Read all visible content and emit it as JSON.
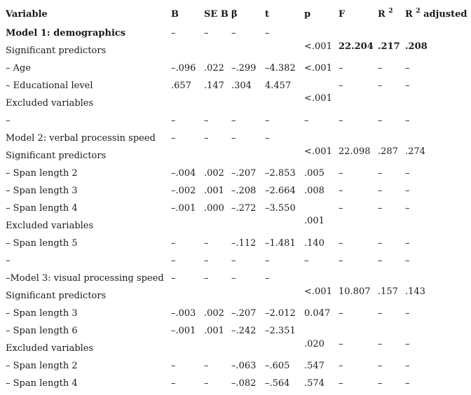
{
  "header": {
    "variable": "Variable",
    "b": "B",
    "se_b": "SE B",
    "beta": "β",
    "t": "t",
    "p": "p",
    "f": "F",
    "r2": "R",
    "r2_sup": "2",
    "r2adj": "R",
    "r2adj_sup": "2",
    "r2adj_suffix": " adjusted"
  },
  "rows": [
    {
      "variable": "Model 1: demographics",
      "bold": true,
      "b": "–",
      "se": "–",
      "beta": "–",
      "t": "–",
      "p": "",
      "f": "",
      "r2": "",
      "r2adj": ""
    },
    {
      "variable": "Significant predictors",
      "b": "",
      "se": "",
      "beta": "",
      "t": "",
      "p": "",
      "f": "",
      "r2": "",
      "r2adj": ""
    },
    {
      "variable": "– Age",
      "b": "–.096",
      "se": ".022",
      "beta": "–.299",
      "t": "–4.382",
      "p": "<.001",
      "f": "–",
      "r2": "–",
      "r2adj": "–"
    },
    {
      "variable": "– Educational level",
      "b": ".657",
      "se": ".147",
      "beta": ".304",
      "t": "4.457",
      "p": "",
      "f": "–",
      "r2": "–",
      "r2adj": "–"
    },
    {
      "variable": "Excluded variables",
      "b": "",
      "se": "",
      "beta": "",
      "t": "",
      "p": "",
      "f": "",
      "r2": "",
      "r2adj": ""
    },
    {
      "variable": "–",
      "b": "–",
      "se": "–",
      "beta": "–",
      "t": "–",
      "p": "–",
      "f": "–",
      "r2": "–",
      "r2adj": "–"
    },
    {
      "variable": "Model 2: verbal processin speed",
      "b": "–",
      "se": "–",
      "beta": "–",
      "t": "–",
      "p": "",
      "f": "",
      "r2": "",
      "r2adj": ""
    },
    {
      "variable": "Significant predictors",
      "b": "",
      "se": "",
      "beta": "",
      "t": "",
      "p": "",
      "f": "",
      "r2": "",
      "r2adj": ""
    },
    {
      "variable": "– Span length 2",
      "b": "–.004",
      "se": ".002",
      "beta": "–.207",
      "t": "–2.853",
      "p": ".005",
      "f": "–",
      "r2": "–",
      "r2adj": "–"
    },
    {
      "variable": "– Span length 3",
      "b": "–.002",
      "se": ".001",
      "beta": "–.208",
      "t": "–2.664",
      "p": ".008",
      "f": "–",
      "r2": "–",
      "r2adj": "–"
    },
    {
      "variable": "– Span length 4",
      "b": "–.001",
      "se": ".000",
      "beta": "–.272",
      "t": "–3.550",
      "p": "",
      "f": "–",
      "r2": "–",
      "r2adj": "–"
    },
    {
      "variable": "Excluded variables",
      "b": "",
      "se": "",
      "beta": "",
      "t": "",
      "p": "",
      "f": "",
      "r2": "",
      "r2adj": ""
    },
    {
      "variable": "– Span length 5",
      "b": "–",
      "se": "–",
      "beta": "–.112",
      "t": "–1.481",
      "p": ".140",
      "f": "–",
      "r2": "–",
      "r2adj": "–"
    },
    {
      "variable": "–",
      "b": "–",
      "se": "–",
      "beta": "–",
      "t": "–",
      "p": "–",
      "f": "–",
      "r2": "–",
      "r2adj": "–"
    },
    {
      "variable": "–Model 3: visual processing speed",
      "b": "–",
      "se": "–",
      "beta": "–",
      "t": "–",
      "p": "",
      "f": "",
      "r2": "",
      "r2adj": ""
    },
    {
      "variable": "Significant predictors",
      "b": "",
      "se": "",
      "beta": "",
      "t": "",
      "p": "",
      "f": "",
      "r2": "",
      "r2adj": ""
    },
    {
      "variable": "– Span length 3",
      "b": "–.003",
      "se": ".002",
      "beta": "–.207",
      "t": "–2.012",
      "p": "0.047",
      "f": "–",
      "r2": "–",
      "r2adj": "–"
    },
    {
      "variable": "– Span length 6",
      "b": "–.001",
      "se": ".001",
      "beta": "–.242",
      "t": "–2.351",
      "p": "",
      "f": "",
      "r2": "",
      "r2adj": ""
    },
    {
      "variable": "Excluded variables",
      "b": "",
      "se": "",
      "beta": "",
      "t": "",
      "p": "",
      "f": "",
      "r2": "",
      "r2adj": ""
    },
    {
      "variable": "– Span length 2",
      "b": "–",
      "se": "–",
      "beta": "–.063",
      "t": "–.605",
      "p": ".547",
      "f": "–",
      "r2": "–",
      "r2adj": "–"
    },
    {
      "variable": "– Span length 4",
      "b": "–",
      "se": "–",
      "beta": "–.082",
      "t": "–.564",
      "p": ".574",
      "f": "–",
      "r2": "–",
      "r2adj": "–"
    }
  ],
  "spanning": [
    {
      "p": "<.001",
      "f": "22.204",
      "r2": ".217",
      "r2adj": ".208",
      "bold": true
    },
    {
      "p": "<.001",
      "f": "",
      "r2": "",
      "r2adj": ""
    },
    {
      "p": "<.001",
      "f": "22.098",
      "r2": ".287",
      "r2adj": ".274"
    },
    {
      "p": ".001",
      "f": "",
      "r2": "",
      "r2adj": ""
    },
    {
      "p": "<.001",
      "f": "10.807",
      "r2": ".157",
      "r2adj": ".143"
    },
    {
      "p": ".020",
      "f": "–",
      "r2": "–",
      "r2adj": "–"
    }
  ]
}
